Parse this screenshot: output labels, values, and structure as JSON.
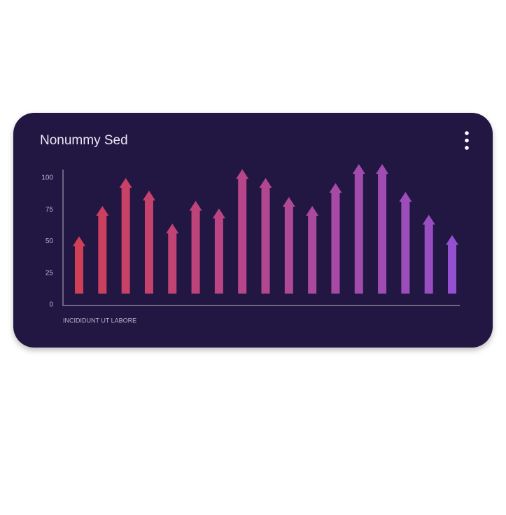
{
  "chart_data": {
    "type": "arrow-bar",
    "title": "Nonummy Sed",
    "xlabel": "INCIDIDUNT UT LABORE",
    "values": [
      54,
      78,
      100,
      90,
      64,
      82,
      76,
      107,
      100,
      85,
      78,
      96,
      111,
      111,
      89,
      71,
      55
    ],
    "colors": [
      "#cf3f58",
      "#cc405f",
      "#c84166",
      "#c5426d",
      "#c14374",
      "#bd447b",
      "#ba4582",
      "#b64689",
      "#b24790",
      "#ae4897",
      "#ab499e",
      "#a74aa5",
      "#a34bac",
      "#9f4cb3",
      "#9c4dba",
      "#984ec1",
      "#9450d0"
    ],
    "ylim": [
      0,
      100
    ],
    "yticks": [
      0,
      25,
      50,
      75,
      100
    ]
  }
}
